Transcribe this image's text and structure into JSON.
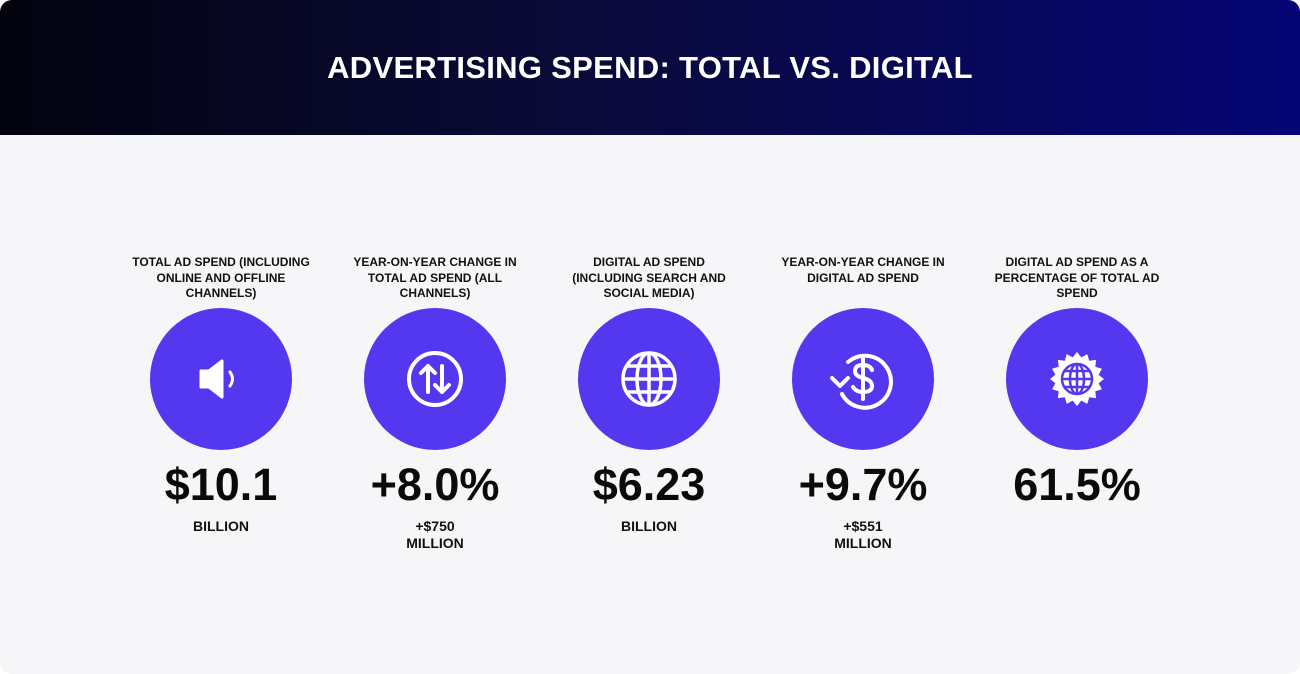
{
  "header": {
    "title": "ADVERTISING SPEND: TOTAL VS. DIGITAL"
  },
  "stats": [
    {
      "label": "TOTAL AD SPEND (INCLUDING ONLINE AND OFFLINE CHANNELS)",
      "value": "$10.1",
      "sub": "BILLION"
    },
    {
      "label": "YEAR-ON-YEAR CHANGE IN TOTAL AD SPEND (ALL CHANNELS)",
      "value": "+8.0%",
      "sub": "+$750 MILLION"
    },
    {
      "label": "DIGITAL AD SPEND (INCLUDING SEARCH AND SOCIAL MEDIA)",
      "value": "$6.23",
      "sub": "BILLION"
    },
    {
      "label": "YEAR-ON-YEAR CHANGE IN DIGITAL AD SPEND",
      "value": "+9.7%",
      "sub": "+$551 MILLION"
    },
    {
      "label": "DIGITAL AD SPEND AS A PERCENTAGE OF TOTAL AD SPEND",
      "value": "61.5%"
    }
  ]
}
